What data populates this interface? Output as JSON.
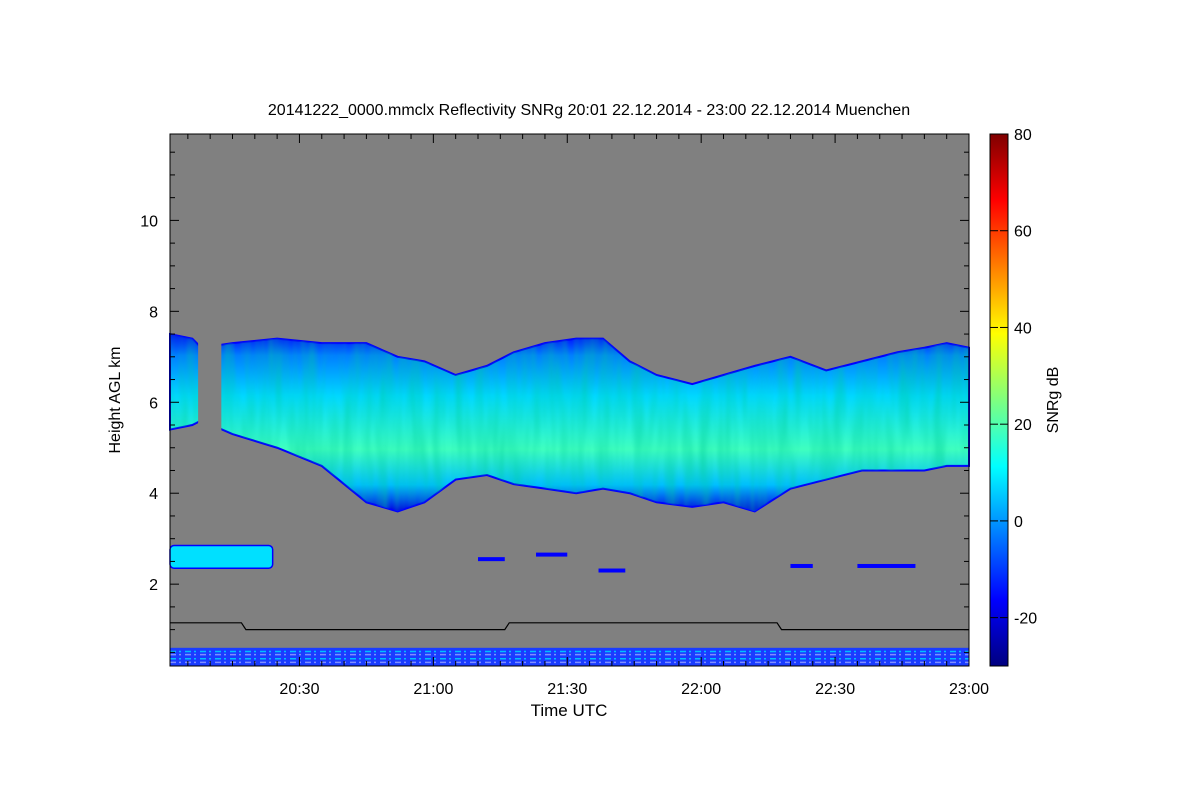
{
  "chart_data": {
    "type": "heatmap",
    "title": "20141222_0000.mmclx Reflectivity SNRg   20:01 22.12.2014 - 23:00 22.12.2014 Muenchen",
    "xlabel": "Time UTC",
    "ylabel": "Height AGL km",
    "colorbar_label": "SNRg dB",
    "x_range_minutes_utc": [
      1201,
      1380
    ],
    "y_range_km": [
      0.2,
      11.9
    ],
    "x_ticks": [
      {
        "minute": 1230,
        "label": "20:30"
      },
      {
        "minute": 1260,
        "label": "21:00"
      },
      {
        "minute": 1290,
        "label": "21:30"
      },
      {
        "minute": 1320,
        "label": "22:00"
      },
      {
        "minute": 1350,
        "label": "22:30"
      },
      {
        "minute": 1380,
        "label": "23:00"
      }
    ],
    "y_ticks": [
      {
        "value": 2,
        "label": "2"
      },
      {
        "value": 4,
        "label": "4"
      },
      {
        "value": 6,
        "label": "6"
      },
      {
        "value": 8,
        "label": "8"
      },
      {
        "value": 10,
        "label": "10"
      }
    ],
    "colorbar_range_db": [
      -30,
      80
    ],
    "colorbar_ticks": [
      {
        "value": -20,
        "label": "-20"
      },
      {
        "value": 0,
        "label": "0"
      },
      {
        "value": 20,
        "label": "20"
      },
      {
        "value": 40,
        "label": "40"
      },
      {
        "value": 60,
        "label": "60"
      },
      {
        "value": 80,
        "label": "80"
      }
    ],
    "colormap": [
      "#00007f",
      "#0000ff",
      "#007fff",
      "#00ffff",
      "#7fff7f",
      "#ffff00",
      "#ff7f00",
      "#ff0000",
      "#7f0000"
    ],
    "background_color": "#808080",
    "cloud_layer": {
      "top_km": [
        [
          1201,
          7.5
        ],
        [
          1206,
          7.4
        ],
        [
          1208,
          7.2
        ],
        [
          1215,
          7.3
        ],
        [
          1225,
          7.4
        ],
        [
          1235,
          7.3
        ],
        [
          1245,
          7.3
        ],
        [
          1252,
          7.0
        ],
        [
          1258,
          6.9
        ],
        [
          1265,
          6.6
        ],
        [
          1272,
          6.8
        ],
        [
          1278,
          7.1
        ],
        [
          1285,
          7.3
        ],
        [
          1292,
          7.4
        ],
        [
          1298,
          7.4
        ],
        [
          1304,
          6.9
        ],
        [
          1310,
          6.6
        ],
        [
          1318,
          6.4
        ],
        [
          1325,
          6.6
        ],
        [
          1332,
          6.8
        ],
        [
          1340,
          7.0
        ],
        [
          1348,
          6.7
        ],
        [
          1356,
          6.9
        ],
        [
          1364,
          7.1
        ],
        [
          1370,
          7.2
        ],
        [
          1375,
          7.3
        ],
        [
          1380,
          7.2
        ]
      ],
      "base_km": [
        [
          1201,
          5.4
        ],
        [
          1206,
          5.5
        ],
        [
          1208,
          5.6
        ],
        [
          1215,
          5.3
        ],
        [
          1225,
          5.0
        ],
        [
          1235,
          4.6
        ],
        [
          1245,
          3.8
        ],
        [
          1252,
          3.6
        ],
        [
          1258,
          3.8
        ],
        [
          1265,
          4.3
        ],
        [
          1272,
          4.4
        ],
        [
          1278,
          4.2
        ],
        [
          1285,
          4.1
        ],
        [
          1292,
          4.0
        ],
        [
          1298,
          4.1
        ],
        [
          1304,
          4.0
        ],
        [
          1310,
          3.8
        ],
        [
          1318,
          3.7
        ],
        [
          1325,
          3.8
        ],
        [
          1332,
          3.6
        ],
        [
          1340,
          4.1
        ],
        [
          1348,
          4.3
        ],
        [
          1356,
          4.5
        ],
        [
          1364,
          4.5
        ],
        [
          1370,
          4.5
        ],
        [
          1375,
          4.6
        ],
        [
          1380,
          4.6
        ]
      ],
      "core_snr_db": 28
    },
    "low_layer": {
      "start_min": 1201,
      "end_min": 1224,
      "bottom_km": 2.35,
      "top_km": 2.85
    },
    "boundary_line_km": [
      [
        1201,
        1.15
      ],
      [
        1217,
        1.15
      ],
      [
        1218,
        1.0
      ],
      [
        1276,
        1.0
      ],
      [
        1277,
        1.15
      ],
      [
        1337,
        1.15
      ],
      [
        1338,
        1.0
      ],
      [
        1380,
        1.0
      ]
    ],
    "ground_clutter_km": [
      0.2,
      0.6
    ]
  }
}
